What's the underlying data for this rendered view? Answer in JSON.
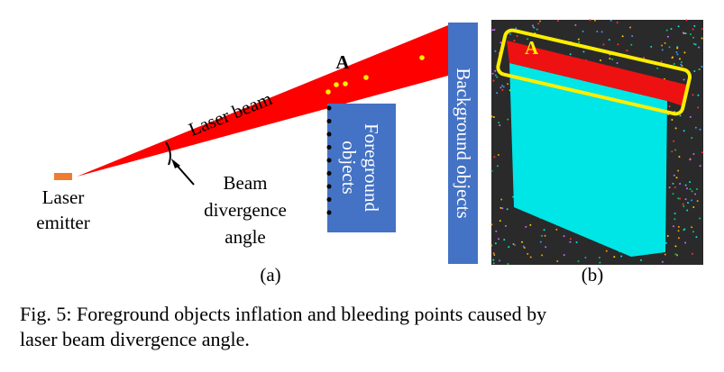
{
  "panel_a": {
    "label": "A",
    "beam": "Laser beam",
    "foreground": [
      "Foreground",
      "objects"
    ],
    "background": "Background objects",
    "emitter": [
      "Laser",
      "emitter"
    ],
    "angle": [
      "Beam",
      "divergence",
      "angle"
    ],
    "caption": "(a)"
  },
  "panel_b": {
    "label": "A",
    "caption": "(b)"
  },
  "caption": [
    "Fig. 5: Foreground objects inflation and bleeding points caused by",
    "laser beam divergence angle."
  ]
}
